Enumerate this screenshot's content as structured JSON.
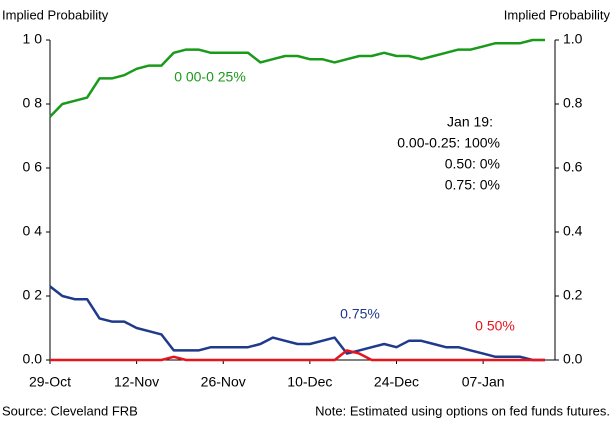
{
  "chart_data": {
    "type": "line",
    "y_label": "Implied Probability",
    "y2_label": "Implied Probability",
    "source": "Source: Cleveland FRB",
    "note": "Note: Estimated using options on fed funds futures.",
    "annotations": [
      "Jan 19:",
      "0.00-0.25: 100%",
      "0.50: 0%",
      "0.75: 0%"
    ],
    "categories": [
      "29-Oct",
      null,
      null,
      null,
      null,
      null,
      null,
      "12-Nov",
      null,
      null,
      null,
      null,
      null,
      null,
      "26-Nov",
      null,
      null,
      null,
      null,
      null,
      null,
      "10-Dec",
      null,
      null,
      null,
      null,
      null,
      null,
      "24-Dec",
      null,
      null,
      null,
      null,
      null,
      null,
      "07-Jan",
      null,
      null,
      null,
      null,
      null
    ],
    "series": [
      {
        "name": "0 00-0 25%",
        "color": "#1a9a1a",
        "values": [
          0.76,
          0.8,
          0.81,
          0.82,
          0.88,
          0.88,
          0.89,
          0.91,
          0.92,
          0.92,
          0.96,
          0.97,
          0.97,
          0.96,
          0.96,
          0.96,
          0.96,
          0.93,
          0.94,
          0.95,
          0.95,
          0.94,
          0.94,
          0.93,
          0.94,
          0.95,
          0.95,
          0.96,
          0.95,
          0.95,
          0.94,
          0.95,
          0.96,
          0.97,
          0.97,
          0.98,
          0.99,
          0.99,
          0.99,
          1.0,
          1.0
        ]
      },
      {
        "name": "0.75%",
        "color": "#1f3a8a",
        "values": [
          0.23,
          0.2,
          0.19,
          0.19,
          0.13,
          0.12,
          0.12,
          0.1,
          0.09,
          0.08,
          0.03,
          0.03,
          0.03,
          0.04,
          0.04,
          0.04,
          0.04,
          0.05,
          0.07,
          0.06,
          0.05,
          0.05,
          0.06,
          0.07,
          0.02,
          0.03,
          0.04,
          0.05,
          0.04,
          0.06,
          0.06,
          0.05,
          0.04,
          0.04,
          0.03,
          0.02,
          0.01,
          0.01,
          0.01,
          0.0,
          0.0
        ]
      },
      {
        "name": "0 50%",
        "color": "#e8141c",
        "values": [
          0,
          0,
          0,
          0,
          0,
          0,
          0,
          0,
          0,
          0,
          0.01,
          0,
          0,
          0,
          0,
          0,
          0,
          0,
          0,
          0,
          0,
          0,
          0,
          0,
          0.03,
          0.02,
          0,
          0,
          0,
          0,
          0,
          0,
          0,
          0,
          0,
          0,
          0,
          0,
          0,
          0,
          0
        ]
      }
    ],
    "ylim": [
      0,
      1
    ],
    "yticks": [
      {
        "value": 0,
        "label": "0.0"
      },
      {
        "value": 0.2,
        "label": "0 2"
      },
      {
        "value": 0.4,
        "label": "0 4"
      },
      {
        "value": 0.6,
        "label": "0 6"
      },
      {
        "value": 0.8,
        "label": "0 8"
      },
      {
        "value": 1,
        "label": "1 0"
      }
    ],
    "y2lim": [
      0,
      1
    ],
    "y2ticks": [
      {
        "value": 0,
        "label": "0.0"
      },
      0.2,
      0.4,
      0.6,
      0.8,
      {
        "value": 1,
        "label": "1.0"
      }
    ]
  }
}
